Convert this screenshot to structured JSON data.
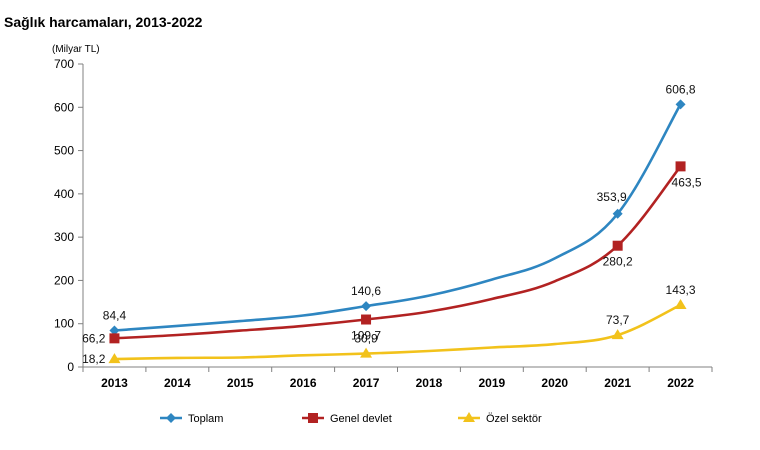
{
  "chart_data": {
    "type": "line",
    "title": "Sağlık harcamaları, 2013-2022",
    "unit_label": "(Milyar TL)",
    "x": [
      "2013",
      "2014",
      "2015",
      "2016",
      "2017",
      "2018",
      "2019",
      "2020",
      "2021",
      "2022"
    ],
    "ylim": [
      0,
      700
    ],
    "yticks": [
      "0",
      "100",
      "200",
      "300",
      "400",
      "500",
      "600",
      "700"
    ],
    "grid": false,
    "legend_position": "bottom",
    "series": [
      {
        "name": "Toplam",
        "color": "#2e86c1",
        "marker": "diamond",
        "values": [
          84.4,
          95,
          106,
          119,
          140.6,
          165,
          202,
          251,
          353.9,
          606.8
        ],
        "labels": [
          {
            "index": 0,
            "text": "84,4",
            "pos": "above"
          },
          {
            "index": 4,
            "text": "140,6",
            "pos": "above"
          },
          {
            "index": 8,
            "text": "353,9",
            "pos": "above-left"
          },
          {
            "index": 9,
            "text": "606,8",
            "pos": "above"
          }
        ]
      },
      {
        "name": "Genel devlet",
        "color": "#b22222",
        "marker": "square",
        "values": [
          66.2,
          74,
          84,
          95,
          109.7,
          128,
          157,
          198,
          280.2,
          463.5
        ],
        "labels": [
          {
            "index": 0,
            "text": "66,2",
            "pos": "left"
          },
          {
            "index": 4,
            "text": "109,7",
            "pos": "below"
          },
          {
            "index": 8,
            "text": "280,2",
            "pos": "below"
          },
          {
            "index": 9,
            "text": "463,5",
            "pos": "below"
          }
        ]
      },
      {
        "name": "Özel sektör",
        "color": "#f2c21b",
        "marker": "triangle",
        "values": [
          18.2,
          21,
          22,
          27,
          30.9,
          37,
          45,
          53,
          73.7,
          143.3
        ],
        "labels": [
          {
            "index": 0,
            "text": "18,2",
            "pos": "left"
          },
          {
            "index": 4,
            "text": "30,9",
            "pos": "above"
          },
          {
            "index": 8,
            "text": "73,7",
            "pos": "above"
          },
          {
            "index": 9,
            "text": "143,3",
            "pos": "above"
          }
        ]
      }
    ]
  }
}
